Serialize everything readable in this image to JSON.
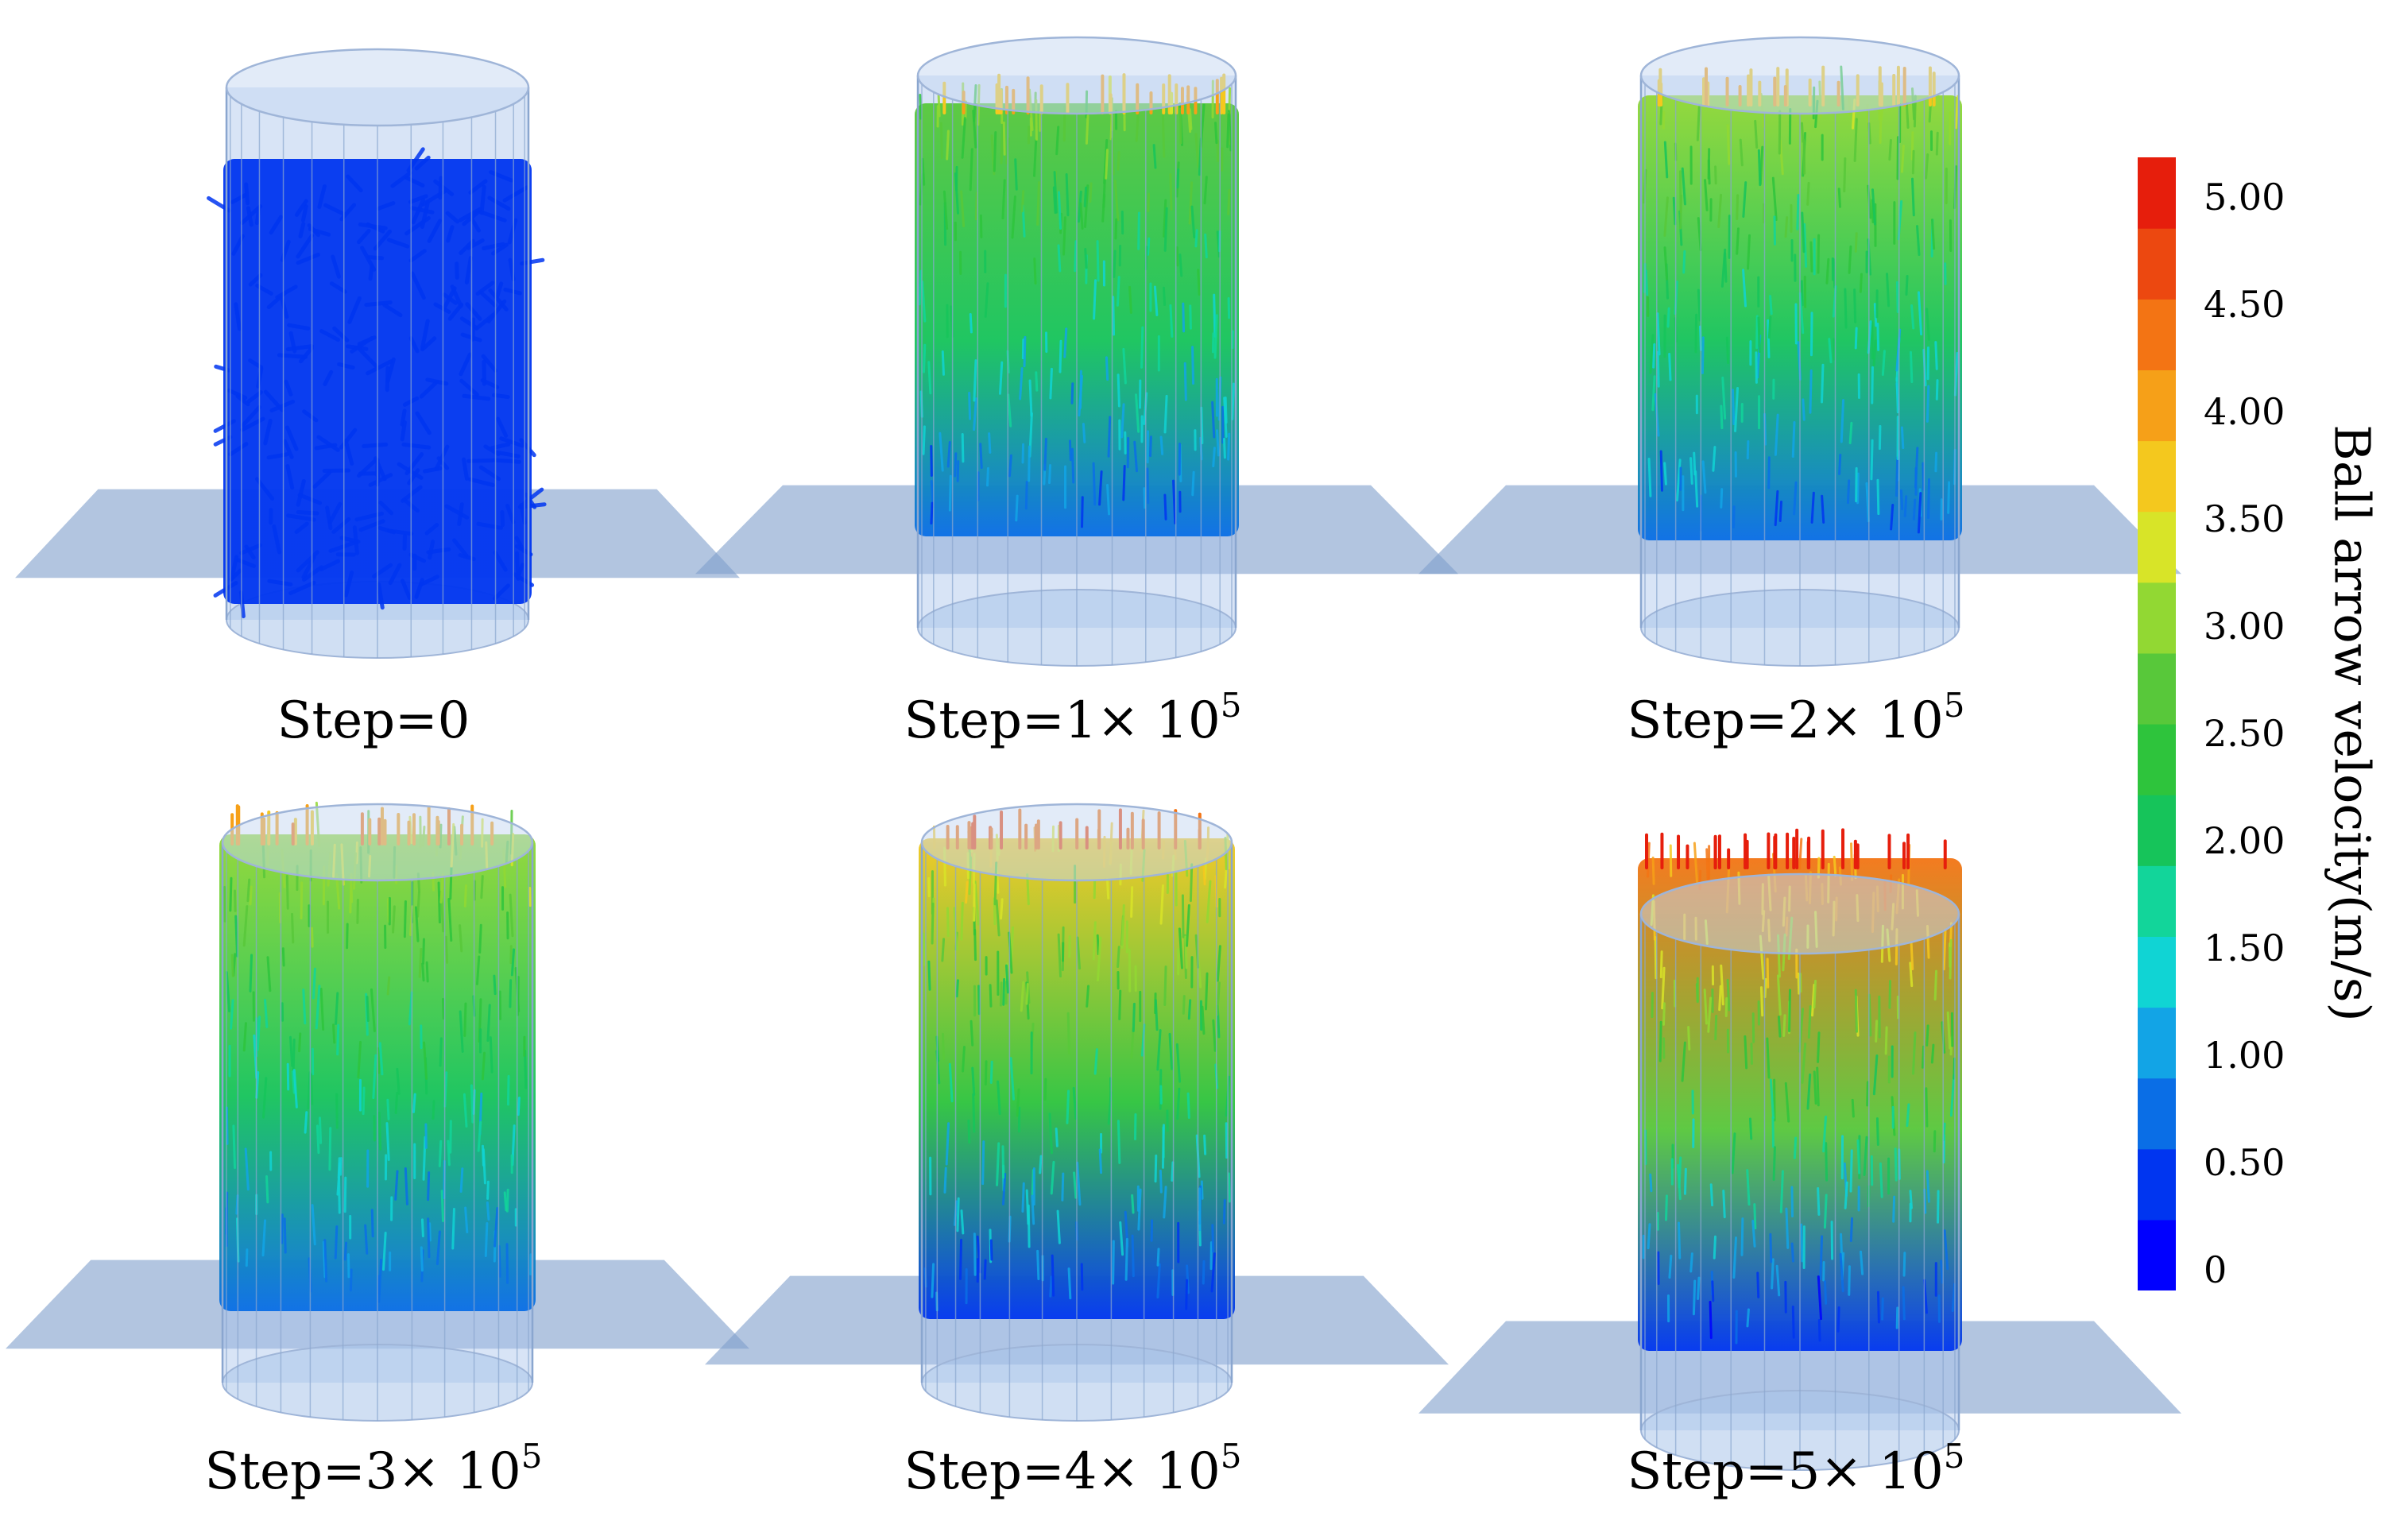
{
  "panels": [
    {
      "prefix": "Step=0",
      "exponent": "",
      "top_speed": 0.6,
      "bottom_speed": 0.4
    },
    {
      "prefix": "Step=1× 10",
      "exponent": "5",
      "top_speed": 2.9,
      "bottom_speed": 0.7
    },
    {
      "prefix": "Step=2× 10",
      "exponent": "5",
      "top_speed": 3.0,
      "bottom_speed": 0.8
    },
    {
      "prefix": "Step=3× 10",
      "exponent": "5",
      "top_speed": 3.2,
      "bottom_speed": 0.8
    },
    {
      "prefix": "Step=4× 10",
      "exponent": "5",
      "top_speed": 3.6,
      "bottom_speed": 0.6
    },
    {
      "prefix": "Step=5× 10",
      "exponent": "5",
      "top_speed": 4.3,
      "bottom_speed": 0.4
    }
  ],
  "colorbar": {
    "title": "Ball arrow velocity(m/s)",
    "min": 0,
    "max": 5.2,
    "ticks": [
      "5.00",
      "4.50",
      "4.00",
      "3.50",
      "3.00",
      "2.50",
      "2.00",
      "1.50",
      "1.00",
      "0.50",
      "0"
    ],
    "colors": [
      "#0000ff",
      "#0035f0",
      "#0a6ee6",
      "#12a4e6",
      "#10d4d4",
      "#12d59a",
      "#16c45a",
      "#2ec43c",
      "#58c83a",
      "#92d833",
      "#d8e428",
      "#f4c81e",
      "#f6a018",
      "#f37414",
      "#ec4810",
      "#e61e0c"
    ]
  }
}
